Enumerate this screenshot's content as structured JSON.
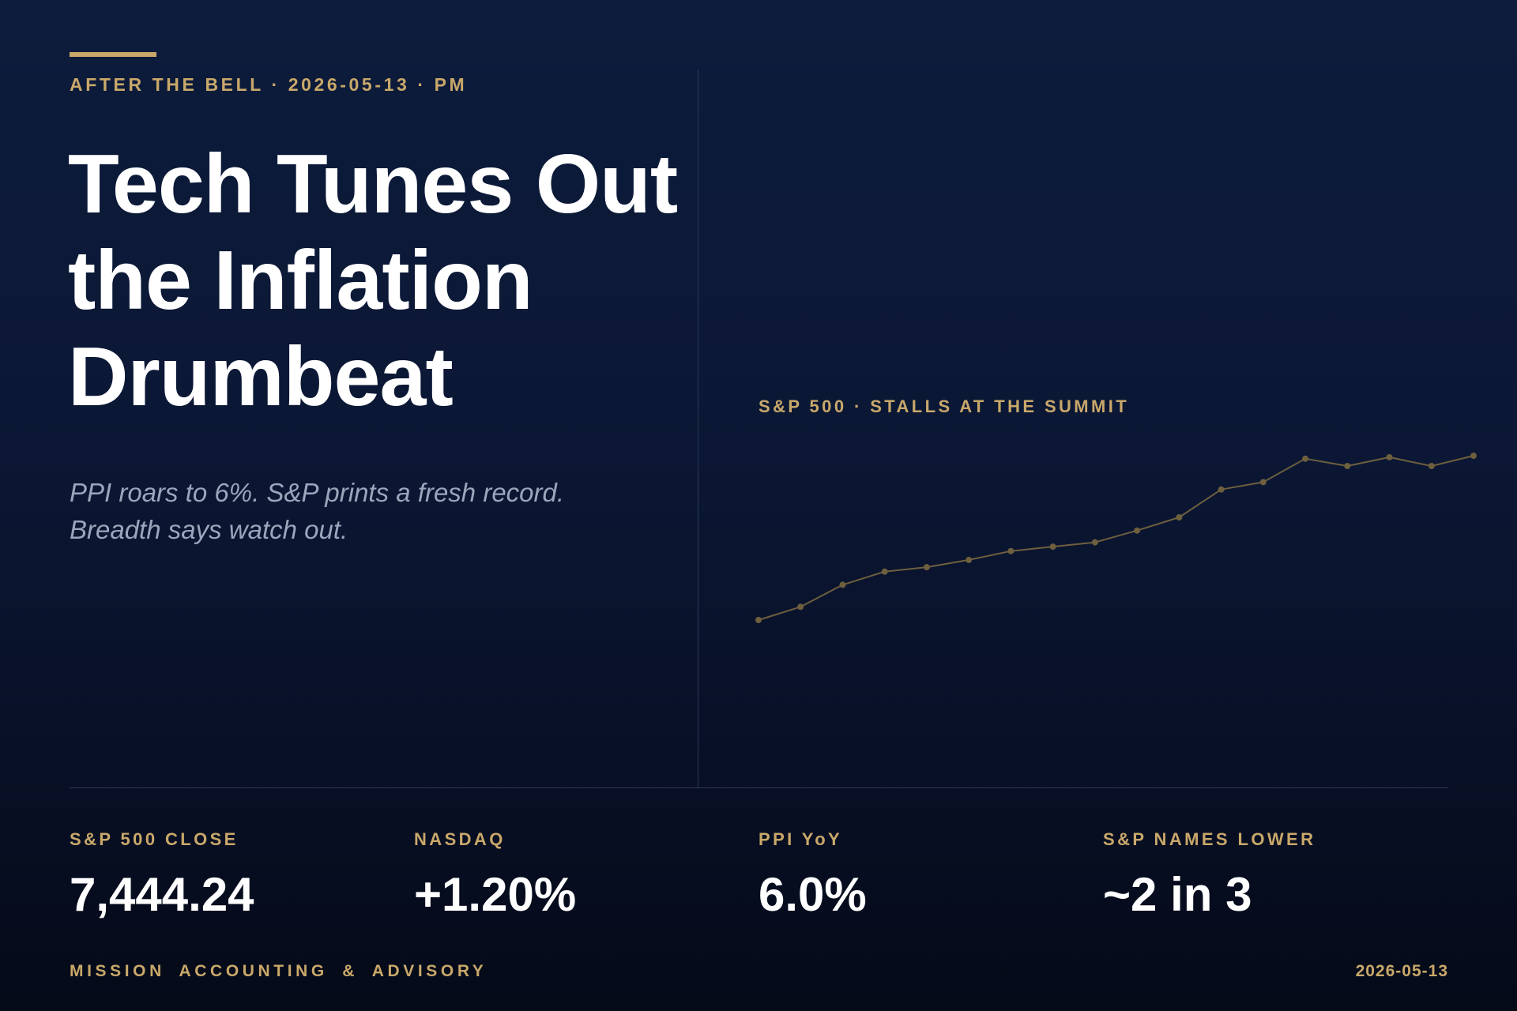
{
  "header": {
    "eyebrow": "AFTER THE BELL · 2026-05-13 · PM",
    "headline_lines": [
      "Tech Tunes Out",
      "the Inflation",
      "Drumbeat"
    ],
    "dek_lines": [
      "PPI roars to 6%. S&P prints a fresh record.",
      "Breadth says watch out."
    ]
  },
  "chart_data": {
    "type": "line",
    "title": "S&P 500 · STALLS AT THE SUMMIT",
    "series": [
      {
        "values": [
          0,
          9,
          24,
          33,
          36,
          41,
          47,
          50,
          53,
          61,
          70,
          89,
          94,
          110,
          105,
          111,
          105,
          112
        ]
      }
    ],
    "ylim": [
      0,
      112
    ],
    "grid": false,
    "legend": "none",
    "line_color": "#6e5f3e"
  },
  "stats": [
    {
      "label": "S&P 500 CLOSE",
      "value": "7,444.24"
    },
    {
      "label": "NASDAQ",
      "value": "+1.20%"
    },
    {
      "label": "PPI YoY",
      "value": "6.0%"
    },
    {
      "label": "S&P NAMES LOWER",
      "value": "~2 in 3"
    }
  ],
  "footer": {
    "brand": "MISSION ACCOUNTING & ADVISORY",
    "date": "2026-05-13"
  },
  "colors": {
    "accent": "#c9a86a",
    "background_top": "#0d1c3c",
    "background_bottom": "#050a18",
    "dek_text": "#9aa6bb",
    "divider": "#2c3957"
  }
}
